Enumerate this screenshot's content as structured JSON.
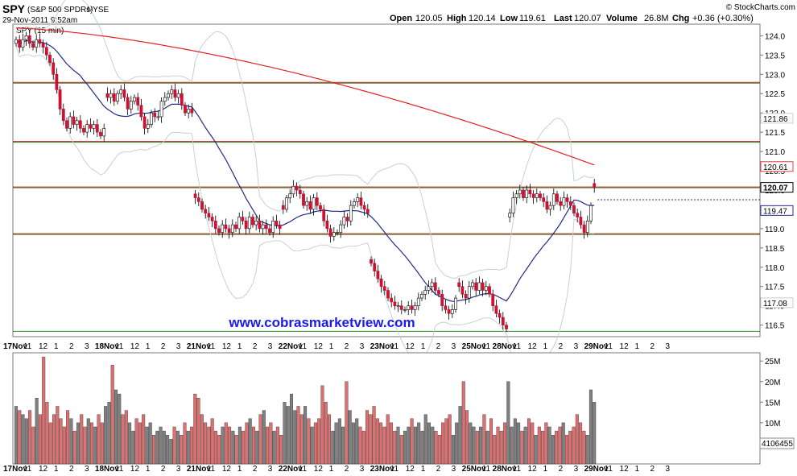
{
  "header": {
    "symbol": "SPY",
    "name": "(S&P 500 SPDRs)",
    "exchange": "NYSE",
    "timestamp": "29-Nov-2011 9:52am",
    "watermark": "© StockCharts.com",
    "quote": {
      "open_label": "Open",
      "open": "120.05",
      "high_label": "High",
      "high": "120.14",
      "low_label": "Low",
      "low": "119.61",
      "last_label": "Last",
      "last": "120.07",
      "volume_label": "Volume",
      "volume": "26.8M",
      "chg_label": "Chg",
      "chg": "+0.36 (+0.30%)"
    }
  },
  "price_panel": {
    "legend": "SPY (15 min)",
    "watermark_url": "www.cobrasmarketview.com",
    "y_ticks": [
      "124.0",
      "123.5",
      "123.0",
      "122.5",
      "122.0",
      "121.5",
      "121.0",
      "120.5",
      "120.0",
      "119.5",
      "119.0",
      "118.5",
      "118.0",
      "117.5",
      "117.0",
      "116.5"
    ],
    "price_tags": [
      {
        "label": "121.86",
        "value": 121.86,
        "color": "#cccccc"
      },
      {
        "label": "120.61",
        "value": 120.61,
        "color": "#e04040"
      },
      {
        "label": "120.07",
        "value": 120.07,
        "color": "#000000",
        "bold": true
      },
      {
        "label": "119.47",
        "value": 119.47,
        "color": "#2b2b8f"
      },
      {
        "label": "117.08",
        "value": 117.08,
        "color": "#cccccc"
      }
    ],
    "green_lines": [
      122.78,
      121.25,
      120.07,
      118.86,
      116.35
    ],
    "red_lines": [
      122.78,
      121.25,
      120.07,
      118.86
    ]
  },
  "volume_panel": {
    "y_ticks": [
      "25M",
      "20M",
      "15M",
      "10M",
      "5M"
    ],
    "last_volume_tag": "4106455"
  },
  "x_axis": {
    "labels": [
      {
        "t": "17Nov",
        "bold": true
      },
      {
        "t": "11"
      },
      {
        "t": "12"
      },
      {
        "t": "1"
      },
      {
        "t": "2"
      },
      {
        "t": "3"
      },
      {
        "t": "18Nov",
        "bold": true
      },
      {
        "t": "11"
      },
      {
        "t": "12"
      },
      {
        "t": "1"
      },
      {
        "t": "2"
      },
      {
        "t": "3"
      },
      {
        "t": "21Nov",
        "bold": true
      },
      {
        "t": "11"
      },
      {
        "t": "12"
      },
      {
        "t": "1"
      },
      {
        "t": "2"
      },
      {
        "t": "3"
      },
      {
        "t": "22Nov",
        "bold": true
      },
      {
        "t": "11"
      },
      {
        "t": "12"
      },
      {
        "t": "1"
      },
      {
        "t": "2"
      },
      {
        "t": "3"
      },
      {
        "t": "23Nov",
        "bold": true
      },
      {
        "t": "11"
      },
      {
        "t": "12"
      },
      {
        "t": "1"
      },
      {
        "t": "2"
      },
      {
        "t": "3"
      },
      {
        "t": "25Nov",
        "bold": true
      },
      {
        "t": "11"
      },
      {
        "t": "28Nov",
        "bold": true
      },
      {
        "t": "11"
      },
      {
        "t": "12"
      },
      {
        "t": "1"
      },
      {
        "t": "2"
      },
      {
        "t": "3"
      },
      {
        "t": "29Nov",
        "bold": true
      },
      {
        "t": "11"
      },
      {
        "t": "12"
      },
      {
        "t": "1"
      },
      {
        "t": "2"
      },
      {
        "t": "3"
      }
    ]
  },
  "colors": {
    "up": "#111111",
    "down": "#cc1133",
    "vol_up": "#808080",
    "vol_down": "#e07070",
    "sma_short": "#232a86",
    "sma_long": "#dd2222",
    "bollinger": "#c8d0d0",
    "support_green": "#2c8a2c",
    "resistance_red": "#cc2222",
    "url_blue": "#1a1aee"
  },
  "chart_data": {
    "type": "candlestick",
    "title": "SPY (S&P 500 SPDRs) NYSE",
    "interval": "15 min",
    "ylim": [
      116.2,
      124.3
    ],
    "volume_ylim": [
      0,
      27000000
    ],
    "sessions": [
      {
        "date": "17-Nov",
        "closes": [
          123.9,
          123.7,
          123.9,
          124.0,
          123.8,
          123.7,
          123.9,
          123.8,
          123.7,
          123.5,
          123.3,
          123.0,
          122.6,
          122.1,
          121.8,
          121.6,
          121.9,
          121.7,
          121.8,
          121.6,
          121.5,
          121.7,
          121.6,
          121.7,
          121.5,
          121.4,
          121.6
        ]
      },
      {
        "date": "18-Nov",
        "closes": [
          122.4,
          122.5,
          122.3,
          122.5,
          122.6,
          122.4,
          122.1,
          122.3,
          122.4,
          122.2,
          121.9,
          121.6,
          121.7,
          122.0,
          121.9,
          121.9,
          122.3,
          122.4,
          122.5,
          122.6,
          122.4,
          122.5,
          122.2,
          122.0,
          122.1,
          122.0
        ]
      },
      {
        "date": "21-Nov",
        "closes": [
          119.8,
          119.7,
          119.5,
          119.4,
          119.3,
          119.2,
          119.0,
          118.9,
          119.1,
          119.0,
          118.9,
          119.1,
          119.0,
          119.3,
          119.2,
          119.0,
          119.3,
          119.1,
          119.2,
          119.0,
          119.1,
          119.0,
          118.9,
          119.2,
          119.1,
          119.0
        ]
      },
      {
        "date": "22-Nov",
        "closes": [
          119.5,
          119.8,
          119.9,
          120.1,
          120.0,
          119.9,
          119.6,
          119.7,
          119.5,
          119.8,
          119.6,
          119.5,
          119.2,
          119.0,
          118.8,
          118.9,
          118.9,
          119.1,
          119.3,
          119.2,
          119.6,
          119.7,
          119.8,
          119.6,
          119.5,
          119.4
        ]
      },
      {
        "date": "23-Nov",
        "closes": [
          118.1,
          117.9,
          117.7,
          117.5,
          117.4,
          117.2,
          117.1,
          117.0,
          117.0,
          116.9,
          116.9,
          117.0,
          116.9,
          117.0,
          117.2,
          117.3,
          117.4,
          117.5,
          117.6,
          117.4,
          117.3,
          117.0,
          116.9,
          116.8,
          116.9,
          117.2
        ]
      },
      {
        "date": "25-Nov",
        "closes": [
          117.5,
          117.3,
          117.2,
          117.5,
          117.6,
          117.4,
          117.6,
          117.4,
          117.5,
          117.3,
          117.0,
          116.8,
          116.7,
          116.5,
          116.4
        ]
      },
      {
        "date": "28-Nov",
        "closes": [
          119.4,
          119.8,
          119.9,
          120.0,
          119.8,
          120.0,
          119.9,
          119.8,
          119.9,
          119.8,
          119.7,
          119.5,
          119.6,
          119.9,
          119.7,
          119.6,
          119.8,
          119.7,
          119.6,
          119.4,
          119.3,
          119.1,
          118.9,
          119.2,
          119.6
        ]
      },
      {
        "date": "29-Nov",
        "closes": [
          120.07
        ]
      }
    ],
    "series": [
      {
        "name": "SPY (15 min)",
        "type": "candlestick"
      },
      {
        "type": "line"
      },
      {
        "type": "line"
      },
      {
        "type": "band"
      }
    ],
    "volume_values_M": [
      14,
      13,
      12,
      11,
      13,
      9,
      16,
      12,
      26,
      15,
      10,
      12,
      14,
      11,
      9,
      13,
      11,
      8,
      10,
      12,
      9,
      11,
      10,
      9,
      12,
      10,
      14,
      15,
      24,
      18,
      17,
      12,
      13,
      10,
      8,
      11,
      10,
      12,
      9,
      10,
      7,
      8,
      9,
      8,
      7,
      6,
      9,
      8,
      7,
      10,
      8,
      9,
      17,
      16,
      12,
      10,
      9,
      11,
      8,
      7,
      9,
      10,
      9,
      8,
      7,
      9,
      8,
      10,
      11,
      9,
      8,
      12,
      13,
      9,
      10,
      8,
      9,
      7,
      15,
      14,
      17,
      13,
      14,
      12,
      14,
      11,
      9,
      10,
      11,
      19,
      15,
      12,
      8,
      10,
      11,
      9,
      20,
      13,
      10,
      11,
      9,
      8,
      13,
      12,
      14,
      11,
      10,
      9,
      12,
      10,
      8,
      9,
      7,
      8,
      9,
      11,
      9,
      10,
      8,
      12,
      10,
      9,
      8,
      7,
      10,
      11,
      12,
      7,
      10,
      14,
      20,
      13,
      10,
      9,
      8,
      9,
      12,
      8,
      11,
      7,
      9,
      8,
      10,
      20,
      9,
      11,
      10,
      8,
      9,
      11,
      10,
      7,
      9,
      8,
      10,
      9,
      7,
      8,
      9,
      10,
      7,
      8,
      9,
      12,
      10,
      8,
      7,
      18,
      15
    ]
  }
}
